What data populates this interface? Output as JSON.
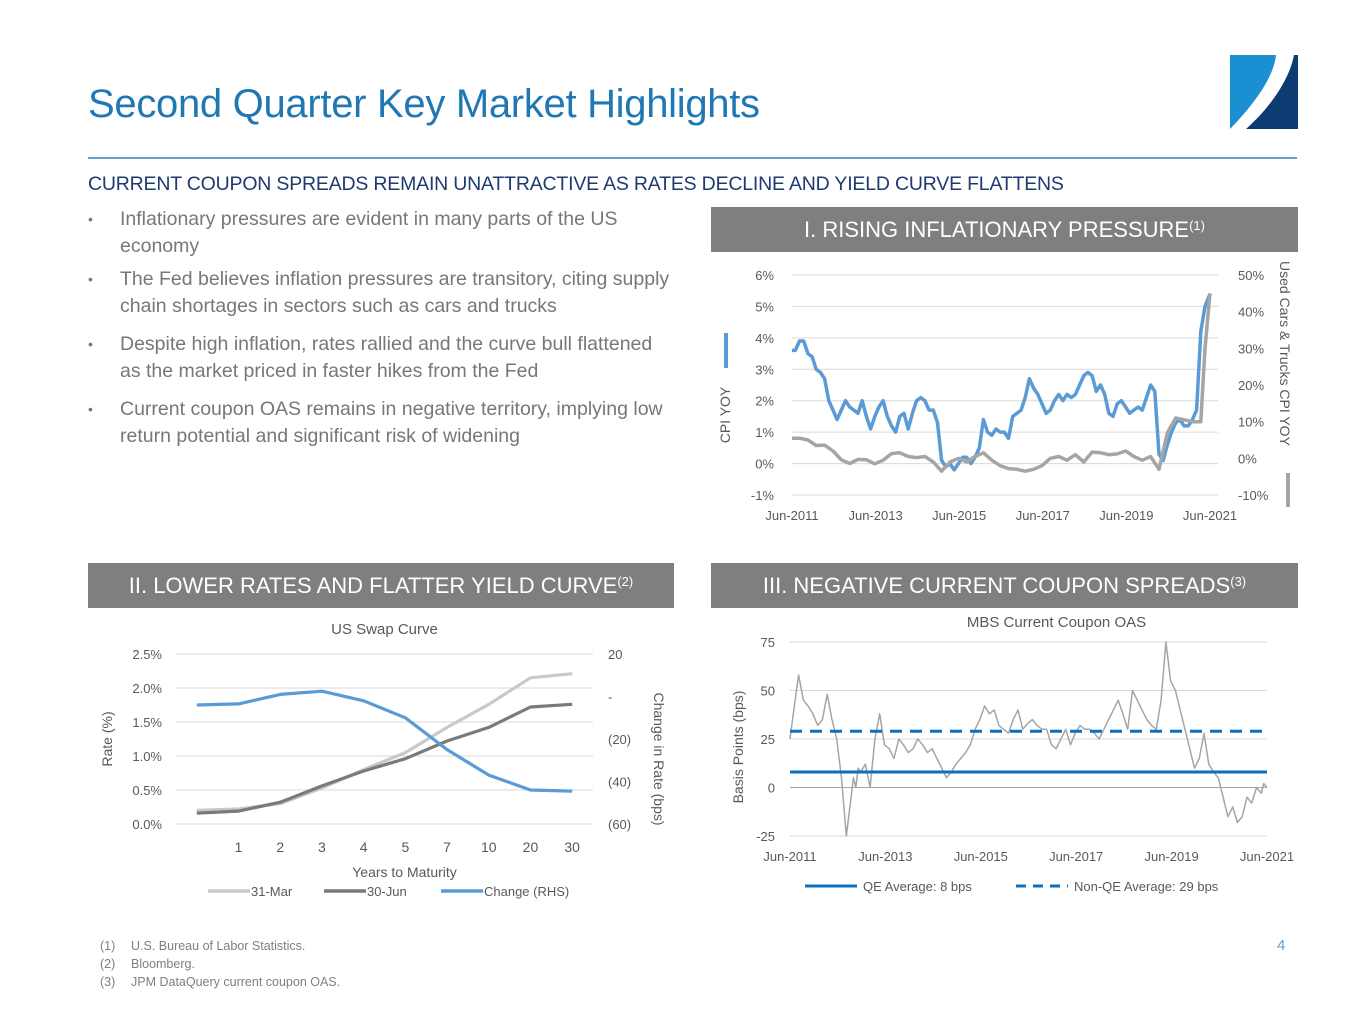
{
  "page": {
    "title": "Second Quarter Key Market Highlights",
    "subtitle": "CURRENT COUPON SPREADS REMAIN UNATTRACTIVE AS RATES DECLINE AND YIELD CURVE FLATTENS",
    "page_number": "4",
    "logo_colors": {
      "light": "#1a8fd1",
      "dark": "#0d3c73"
    },
    "accent_color": "#1f78b4"
  },
  "bullets": [
    {
      "text": "Inflationary pressures are evident in many parts of the US economy"
    },
    {
      "text": "The Fed believes inflation pressures are transitory, citing supply chain shortages in sectors such as cars and trucks"
    },
    {
      "text": "Despite high inflation, rates rallied and the curve bull flattened as the market priced in faster hikes from the Fed"
    },
    {
      "text": "Current coupon OAS remains in negative territory, implying low return potential and significant risk of widening"
    }
  ],
  "panels": [
    {
      "label": "I. RISING INFLATIONARY PRESSURE",
      "note": "(1)"
    },
    {
      "label": "II. LOWER RATES AND FLATTER YIELD CURVE",
      "note": "(2)"
    },
    {
      "label": "III. NEGATIVE CURRENT COUPON SPREADS",
      "note": "(3)"
    }
  ],
  "footnotes": [
    {
      "num": "(1)",
      "text": "U.S. Bureau of Labor Statistics."
    },
    {
      "num": "(2)",
      "text": "Bloomberg."
    },
    {
      "num": "(3)",
      "text": "JPM DataQuery current coupon OAS."
    }
  ],
  "chart_data": [
    {
      "id": "cpi",
      "type": "line",
      "title": "",
      "xlabel": "",
      "ylabel": "CPI YOY",
      "y2label": "Used Cars & Trucks CPI YOY",
      "x_ticks": [
        "Jun-2011",
        "Jun-2013",
        "Jun-2015",
        "Jun-2017",
        "Jun-2019",
        "Jun-2021"
      ],
      "x_range": [
        2011.42,
        2021.42
      ],
      "y_ticks": [
        "6%",
        "5%",
        "4%",
        "3%",
        "2%",
        "1%",
        "0%",
        "-1%"
      ],
      "ylim": [
        -1,
        6
      ],
      "y2_ticks": [
        "50%",
        "40%",
        "30%",
        "20%",
        "10%",
        "0%",
        "-10%"
      ],
      "y2lim": [
        -10,
        50
      ],
      "grid": true,
      "series": [
        {
          "name": "CPI YOY",
          "axis": "left",
          "color": "#5b9bd5",
          "x": [
            2011.42,
            2011.5,
            2011.6,
            2011.7,
            2011.8,
            2011.9,
            2012.0,
            2012.1,
            2012.2,
            2012.3,
            2012.4,
            2012.5,
            2012.6,
            2012.7,
            2012.8,
            2012.9,
            2013.0,
            2013.1,
            2013.2,
            2013.3,
            2013.4,
            2013.5,
            2013.6,
            2013.7,
            2013.8,
            2013.9,
            2014.0,
            2014.1,
            2014.2,
            2014.3,
            2014.4,
            2014.5,
            2014.6,
            2014.7,
            2014.8,
            2014.9,
            2015.0,
            2015.1,
            2015.2,
            2015.3,
            2015.4,
            2015.5,
            2015.6,
            2015.7,
            2015.8,
            2015.9,
            2016.0,
            2016.1,
            2016.2,
            2016.3,
            2016.4,
            2016.5,
            2016.6,
            2016.7,
            2016.8,
            2016.9,
            2017.0,
            2017.1,
            2017.2,
            2017.3,
            2017.4,
            2017.5,
            2017.6,
            2017.7,
            2017.8,
            2017.9,
            2018.0,
            2018.1,
            2018.2,
            2018.3,
            2018.4,
            2018.5,
            2018.6,
            2018.7,
            2018.8,
            2018.9,
            2019.0,
            2019.1,
            2019.2,
            2019.3,
            2019.4,
            2019.5,
            2019.6,
            2019.7,
            2019.8,
            2019.9,
            2020.0,
            2020.1,
            2020.2,
            2020.3,
            2020.4,
            2020.5,
            2020.6,
            2020.7,
            2020.8,
            2020.9,
            2021.0,
            2021.1,
            2021.2,
            2021.3,
            2021.42
          ],
          "y": [
            3.6,
            3.6,
            3.9,
            3.9,
            3.5,
            3.4,
            3.0,
            2.9,
            2.7,
            2.0,
            1.7,
            1.4,
            1.7,
            2.0,
            1.8,
            1.7,
            1.6,
            2.0,
            1.5,
            1.1,
            1.5,
            1.8,
            2.0,
            1.5,
            1.2,
            1.0,
            1.5,
            1.6,
            1.1,
            1.6,
            2.0,
            2.1,
            2.0,
            1.7,
            1.7,
            1.3,
            0.1,
            -0.1,
            0.0,
            -0.2,
            0.0,
            0.2,
            0.2,
            0.0,
            0.2,
            0.5,
            1.4,
            1.0,
            0.9,
            1.1,
            1.0,
            1.0,
            0.8,
            1.5,
            1.6,
            1.7,
            2.1,
            2.7,
            2.4,
            2.2,
            1.9,
            1.6,
            1.7,
            2.0,
            2.2,
            2.0,
            2.2,
            2.1,
            2.2,
            2.5,
            2.8,
            2.9,
            2.8,
            2.3,
            2.5,
            2.2,
            1.6,
            1.5,
            1.9,
            2.0,
            1.8,
            1.6,
            1.7,
            1.8,
            1.7,
            2.1,
            2.5,
            2.3,
            0.3,
            0.1,
            0.6,
            1.0,
            1.3,
            1.4,
            1.2,
            1.2,
            1.4,
            1.7,
            4.2,
            5.0,
            5.4
          ]
        },
        {
          "name": "Used Cars & Trucks CPI YOY",
          "axis": "right",
          "color": "#a5a5a5",
          "x": [
            2011.42,
            2011.6,
            2011.8,
            2012.0,
            2012.2,
            2012.4,
            2012.6,
            2012.8,
            2013.0,
            2013.2,
            2013.4,
            2013.6,
            2013.8,
            2014.0,
            2014.2,
            2014.4,
            2014.6,
            2014.8,
            2015.0,
            2015.2,
            2015.4,
            2015.6,
            2015.8,
            2016.0,
            2016.2,
            2016.4,
            2016.6,
            2016.8,
            2017.0,
            2017.2,
            2017.4,
            2017.6,
            2017.8,
            2018.0,
            2018.2,
            2018.4,
            2018.6,
            2018.8,
            2019.0,
            2019.2,
            2019.4,
            2019.6,
            2019.8,
            2020.0,
            2020.2,
            2020.4,
            2020.6,
            2020.8,
            2021.0,
            2021.2,
            2021.3,
            2021.42
          ],
          "y": [
            5.5,
            5.5,
            5.0,
            3.5,
            3.6,
            2.0,
            -0.4,
            -1.4,
            -0.3,
            -0.4,
            -1.5,
            -0.5,
            1.3,
            1.5,
            0.5,
            0.2,
            0.5,
            -1.0,
            -3.5,
            -1.0,
            0.0,
            -1.0,
            0.5,
            1.5,
            -0.5,
            -2.0,
            -2.8,
            -3.0,
            -3.5,
            -3.0,
            -2.0,
            0.0,
            0.5,
            -0.5,
            1.0,
            -1.0,
            1.7,
            1.5,
            1.0,
            1.2,
            2.0,
            0.5,
            -0.5,
            0.5,
            -3.0,
            7.0,
            11.0,
            10.5,
            10.0,
            10.0,
            30.0,
            45.0
          ]
        }
      ]
    },
    {
      "id": "swap",
      "type": "line",
      "title": "US Swap Curve",
      "xlabel": "Years to Maturity",
      "ylabel": "Rate (%)",
      "y2label": "Change in Rate (bps)",
      "categories": [
        "",
        "1",
        "2",
        "3",
        "4",
        "5",
        "7",
        "10",
        "20",
        "30"
      ],
      "y_ticks": [
        "2.5%",
        "2.0%",
        "1.5%",
        "1.0%",
        "0.5%",
        "0.0%"
      ],
      "ylim": [
        0,
        2.5
      ],
      "y2_ticks": [
        "20",
        "-",
        "(20)",
        "(40)",
        "(60)"
      ],
      "y2lim": [
        -60,
        20
      ],
      "legend": "bottom",
      "grid": true,
      "series": [
        {
          "name": "31-Mar",
          "axis": "left",
          "color": "#c9c9c9",
          "values": [
            0.2,
            0.22,
            0.3,
            0.53,
            0.8,
            1.05,
            1.42,
            1.76,
            2.15,
            2.21
          ]
        },
        {
          "name": "30-Jun",
          "axis": "left",
          "color": "#7a7a7a",
          "values": [
            0.16,
            0.19,
            0.32,
            0.56,
            0.78,
            0.96,
            1.22,
            1.42,
            1.72,
            1.76
          ]
        },
        {
          "name": "Change (RHS)",
          "axis": "right",
          "color": "#5b9bd5",
          "values": [
            -4,
            -3.5,
            1,
            2.5,
            -2,
            -10,
            -25,
            -37,
            -44,
            -44.5
          ]
        }
      ]
    },
    {
      "id": "oas",
      "type": "line",
      "title": "MBS Current Coupon OAS",
      "xlabel": "",
      "ylabel": "Basis Points (bps)",
      "x_ticks": [
        "Jun-2011",
        "Jun-2013",
        "Jun-2015",
        "Jun-2017",
        "Jun-2019",
        "Jun-2021"
      ],
      "x_range": [
        2011.42,
        2021.42
      ],
      "y_ticks": [
        "75",
        "50",
        "25",
        "0",
        "-25"
      ],
      "ylim": [
        -25,
        75
      ],
      "legend": "bottom",
      "grid": true,
      "series": [
        {
          "name": "MBS Current Coupon OAS",
          "color": "#a5a5a5",
          "x": [
            2011.42,
            2011.5,
            2011.6,
            2011.7,
            2011.8,
            2011.9,
            2012.0,
            2012.1,
            2012.2,
            2012.3,
            2012.4,
            2012.5,
            2012.6,
            2012.7,
            2012.75,
            2012.8,
            2012.85,
            2012.9,
            2013.0,
            2013.1,
            2013.2,
            2013.3,
            2013.4,
            2013.5,
            2013.6,
            2013.7,
            2013.8,
            2013.9,
            2014.0,
            2014.1,
            2014.2,
            2014.3,
            2014.4,
            2014.5,
            2014.6,
            2014.7,
            2014.8,
            2014.9,
            2015.0,
            2015.1,
            2015.2,
            2015.3,
            2015.4,
            2015.5,
            2015.6,
            2015.7,
            2015.8,
            2015.9,
            2016.0,
            2016.1,
            2016.2,
            2016.3,
            2016.4,
            2016.5,
            2016.6,
            2016.7,
            2016.8,
            2016.9,
            2017.0,
            2017.1,
            2017.2,
            2017.3,
            2017.4,
            2017.5,
            2017.6,
            2017.7,
            2017.8,
            2017.9,
            2018.0,
            2018.1,
            2018.2,
            2018.3,
            2018.4,
            2018.5,
            2018.6,
            2018.7,
            2018.8,
            2018.9,
            2019.0,
            2019.1,
            2019.2,
            2019.3,
            2019.4,
            2019.5,
            2019.6,
            2019.7,
            2019.8,
            2019.9,
            2020.0,
            2020.1,
            2020.15,
            2020.2,
            2020.3,
            2020.4,
            2020.5,
            2020.6,
            2020.7,
            2020.8,
            2020.9,
            2021.0,
            2021.1,
            2021.2,
            2021.3,
            2021.35,
            2021.42
          ],
          "y": [
            25,
            40,
            58,
            45,
            42,
            38,
            32,
            35,
            48,
            35,
            25,
            5,
            -25,
            -5,
            5,
            0,
            10,
            8,
            12,
            0,
            25,
            38,
            22,
            20,
            15,
            25,
            22,
            18,
            20,
            25,
            22,
            18,
            20,
            15,
            10,
            5,
            8,
            12,
            15,
            18,
            22,
            30,
            35,
            42,
            38,
            40,
            32,
            30,
            28,
            35,
            40,
            30,
            33,
            35,
            32,
            30,
            30,
            22,
            20,
            25,
            30,
            22,
            28,
            32,
            30,
            30,
            28,
            25,
            30,
            35,
            40,
            45,
            38,
            30,
            50,
            45,
            40,
            35,
            32,
            30,
            45,
            75,
            55,
            50,
            40,
            30,
            20,
            10,
            15,
            28,
            20,
            12,
            8,
            5,
            -5,
            -15,
            -10,
            -18,
            -15,
            -5,
            -8,
            0,
            -3,
            2,
            0
          ]
        }
      ],
      "reference_lines": [
        {
          "name": "QE Average: 8 bps",
          "value": 8,
          "style": "solid",
          "color": "#0b6fbf"
        },
        {
          "name": "Non-QE Average: 29 bps",
          "value": 29,
          "style": "dashed",
          "color": "#0b6fbf"
        }
      ]
    }
  ]
}
